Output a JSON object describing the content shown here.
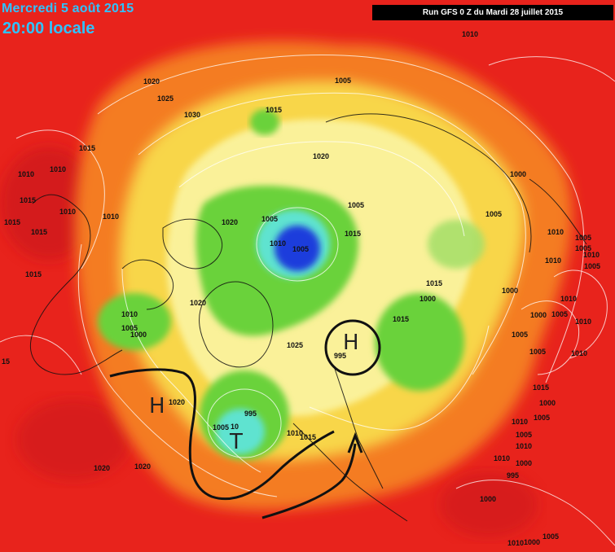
{
  "header": {
    "date": "Mercredi 5 août 2015",
    "time": "20:00 locale",
    "run": "Run GFS 0 Z du Mardi 28 juillet 2015"
  },
  "colors": {
    "background_high": "#e8231c",
    "orange": "#f47b20",
    "yellow": "#f8d648",
    "pale_yellow": "#fbf6a8",
    "green": "#6ad23a",
    "light_green": "#a8e06a",
    "cyan": "#5fe3d0",
    "blue": "#1a3cdc",
    "annotation": "#111111",
    "title": "#2fc3ff"
  },
  "annotations": {
    "high_left": "H",
    "high_circle": "H",
    "low": "T"
  },
  "isobar_labels": [
    {
      "id": "l1",
      "text": "1010"
    },
    {
      "id": "l2",
      "text": "1020"
    },
    {
      "id": "l3",
      "text": "1025"
    },
    {
      "id": "l4",
      "text": "1030"
    },
    {
      "id": "l5",
      "text": "1015"
    },
    {
      "id": "l6",
      "text": "1005"
    },
    {
      "id": "l7",
      "text": "1020"
    },
    {
      "id": "l8",
      "text": "1015"
    },
    {
      "id": "l9",
      "text": "1010"
    },
    {
      "id": "l10",
      "text": "1010"
    },
    {
      "id": "l11",
      "text": "1015"
    },
    {
      "id": "l12",
      "text": "1015"
    },
    {
      "id": "l13",
      "text": "1010"
    },
    {
      "id": "l14",
      "text": "1015"
    },
    {
      "id": "l15",
      "text": "1010"
    },
    {
      "id": "l16",
      "text": "1015"
    },
    {
      "id": "l17",
      "text": "1020"
    },
    {
      "id": "l18",
      "text": "1005"
    },
    {
      "id": "l19",
      "text": "1010"
    },
    {
      "id": "l20",
      "text": "1005"
    },
    {
      "id": "l21",
      "text": "1005"
    },
    {
      "id": "l22",
      "text": "1015"
    },
    {
      "id": "l23",
      "text": "1000"
    },
    {
      "id": "l24",
      "text": "1005"
    },
    {
      "id": "l25",
      "text": "1010"
    },
    {
      "id": "l26",
      "text": "1005"
    },
    {
      "id": "l27",
      "text": "1005"
    },
    {
      "id": "l28",
      "text": "1010"
    },
    {
      "id": "l29",
      "text": "1005"
    },
    {
      "id": "l30",
      "text": "1000"
    },
    {
      "id": "l31",
      "text": "1015"
    },
    {
      "id": "l32",
      "text": "1020"
    },
    {
      "id": "l33",
      "text": "1025"
    },
    {
      "id": "l34",
      "text": "995"
    },
    {
      "id": "l35",
      "text": "1000"
    },
    {
      "id": "l36",
      "text": "1010"
    },
    {
      "id": "l37",
      "text": "1015"
    },
    {
      "id": "l38",
      "text": "1010"
    },
    {
      "id": "l39",
      "text": "1005"
    },
    {
      "id": "l40",
      "text": "1000"
    },
    {
      "id": "l41",
      "text": "1000"
    },
    {
      "id": "l42",
      "text": "1005"
    },
    {
      "id": "l43",
      "text": "1010"
    },
    {
      "id": "l44",
      "text": "1005"
    },
    {
      "id": "l45",
      "text": "1005"
    },
    {
      "id": "l46",
      "text": "1010"
    },
    {
      "id": "l47",
      "text": "1015"
    },
    {
      "id": "l48",
      "text": "1000"
    },
    {
      "id": "l49",
      "text": "1020"
    },
    {
      "id": "l50",
      "text": "995"
    },
    {
      "id": "l51",
      "text": "1005"
    },
    {
      "id": "l52",
      "text": "10"
    },
    {
      "id": "l53",
      "text": "1010"
    },
    {
      "id": "l54",
      "text": "1015"
    },
    {
      "id": "l55",
      "text": "1020"
    },
    {
      "id": "l56",
      "text": "1020"
    },
    {
      "id": "l57",
      "text": "1010"
    },
    {
      "id": "l58",
      "text": "1005"
    },
    {
      "id": "l59",
      "text": "1010"
    },
    {
      "id": "l60",
      "text": "1000"
    },
    {
      "id": "l61",
      "text": "995"
    },
    {
      "id": "l62",
      "text": "1010"
    },
    {
      "id": "l63",
      "text": "1005"
    },
    {
      "id": "l64",
      "text": "1000"
    },
    {
      "id": "l65",
      "text": "1005"
    },
    {
      "id": "l66",
      "text": "1010"
    },
    {
      "id": "l67",
      "text": "1000"
    },
    {
      "id": "l68",
      "text": "1015"
    },
    {
      "id": "l69",
      "text": "1010"
    },
    {
      "id": "l70",
      "text": "15"
    },
    {
      "id": "l71",
      "text": "1010"
    }
  ]
}
